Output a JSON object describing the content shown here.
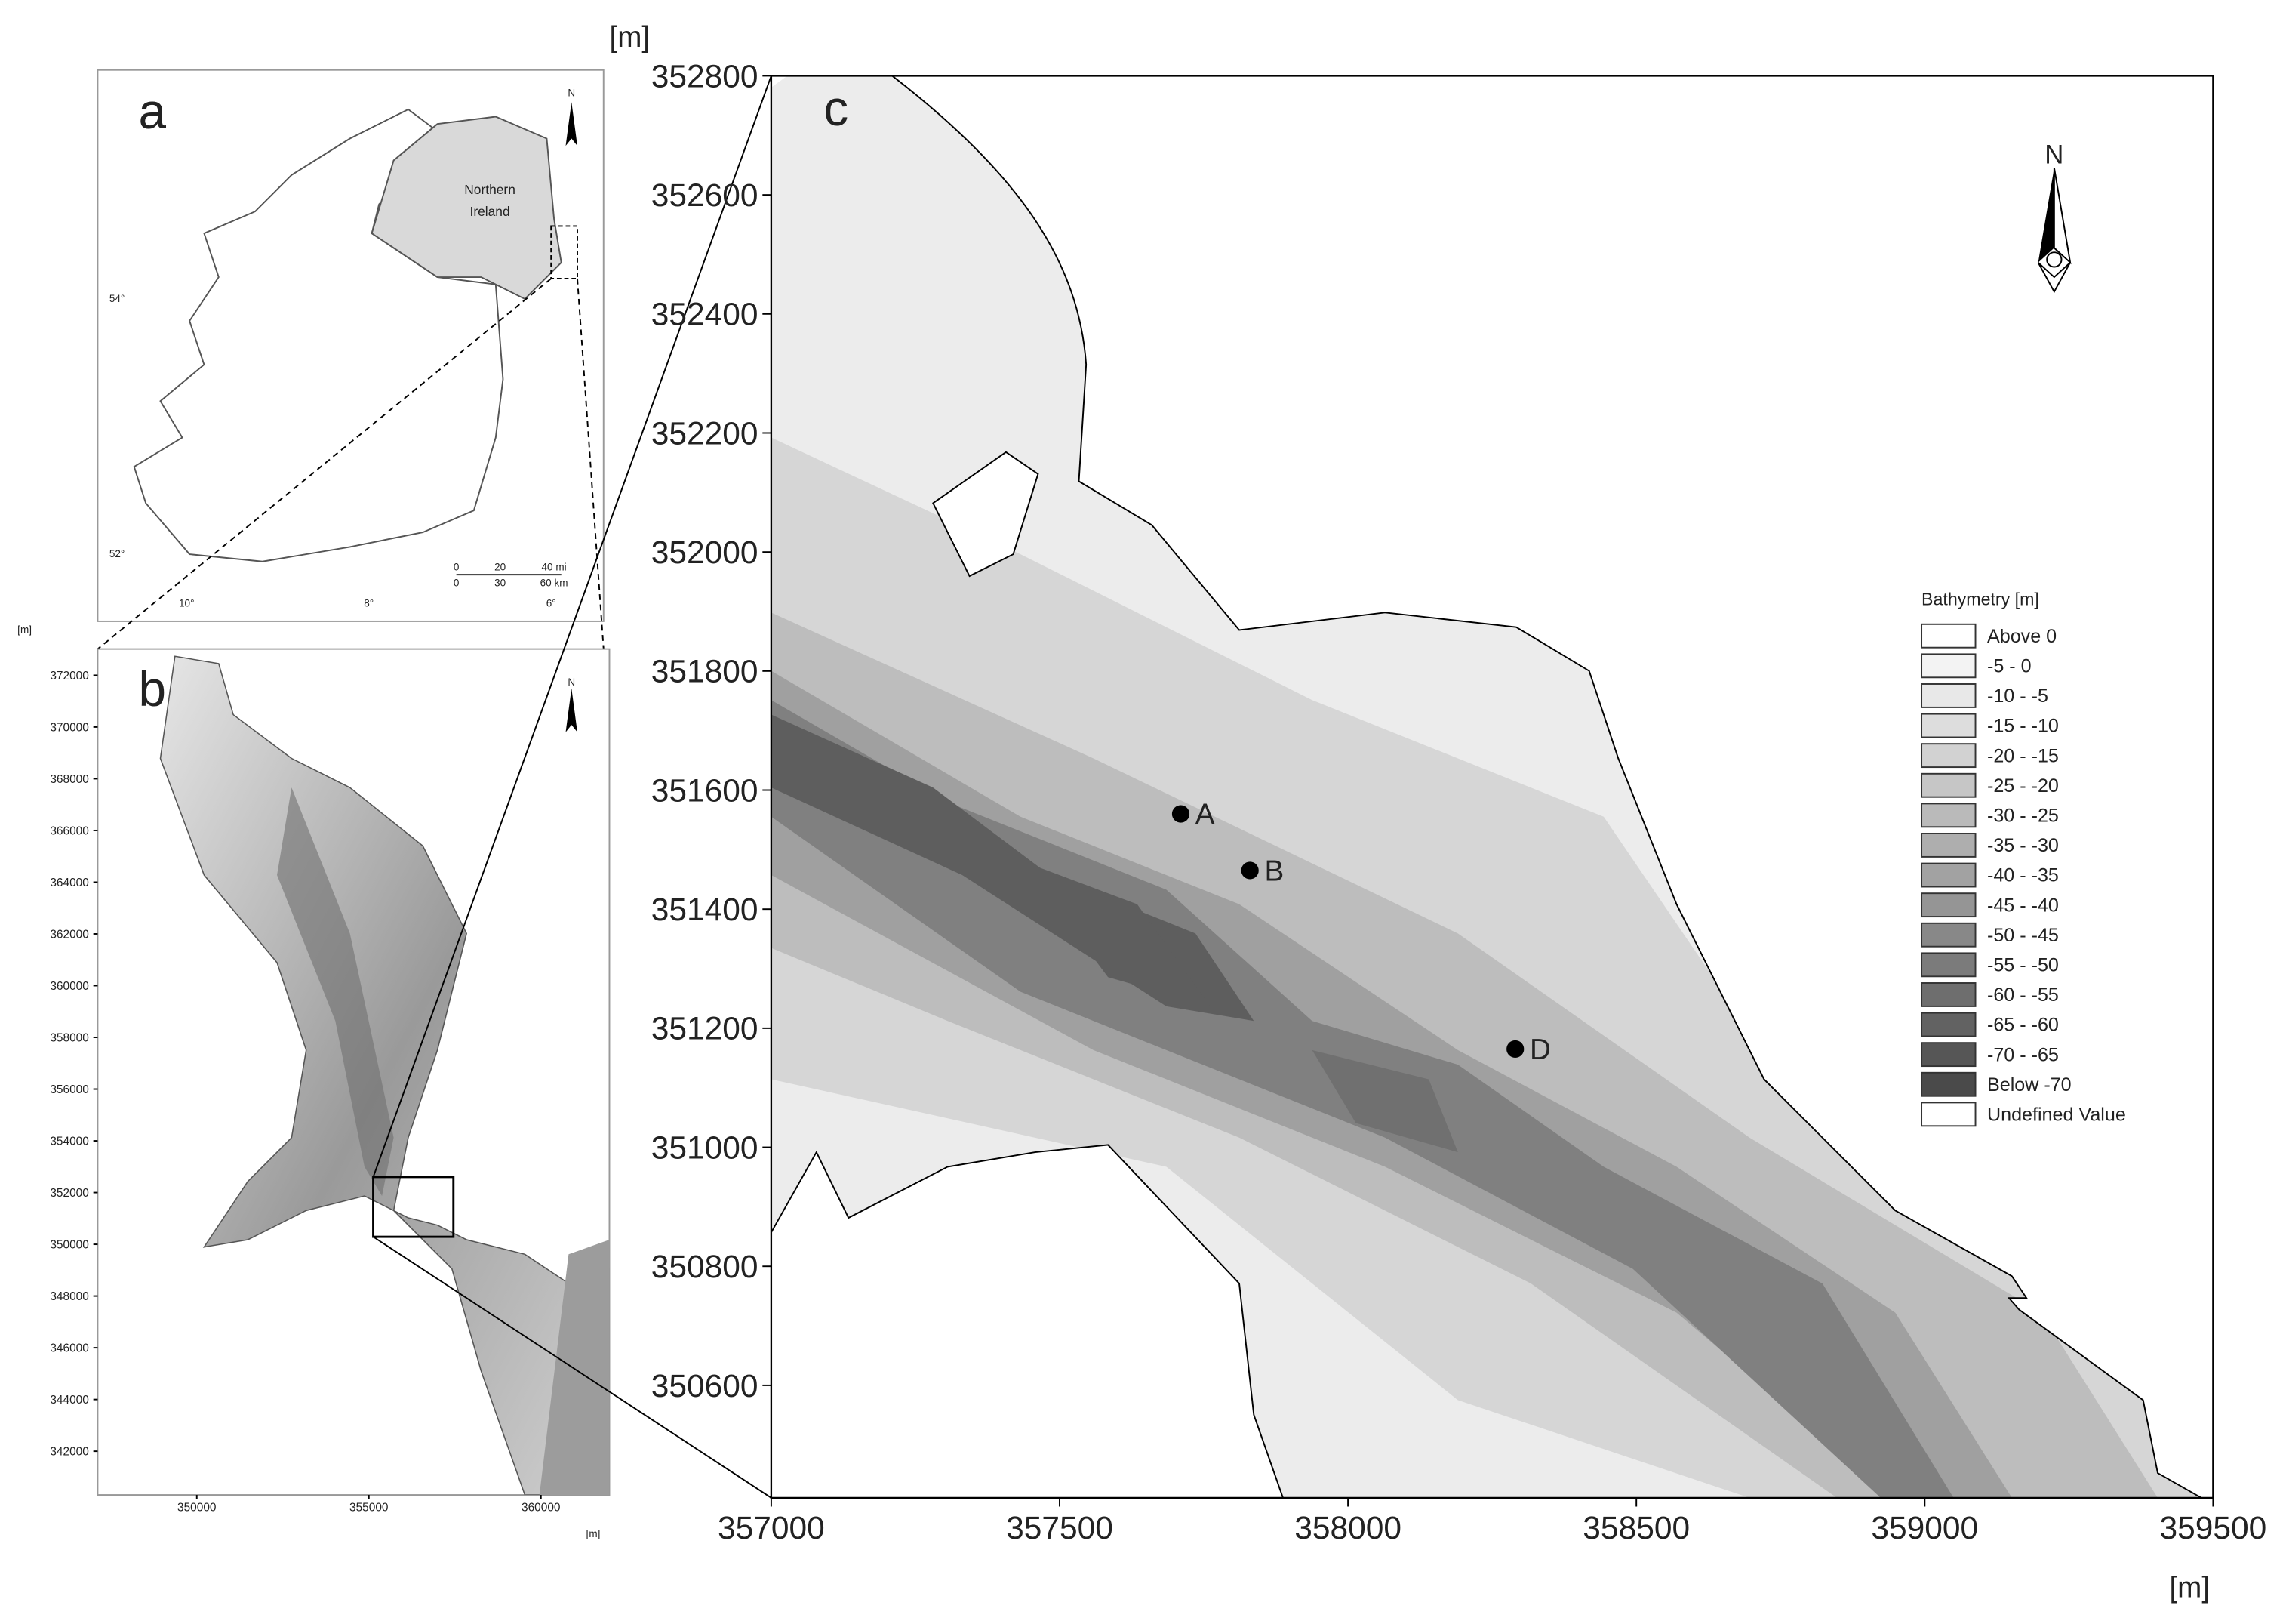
{
  "panels": {
    "a": {
      "label": "a",
      "region_label": [
        "Northern",
        "Ireland"
      ],
      "north": "N",
      "lat_labels": [
        "54°",
        "52°"
      ],
      "lon_labels": [
        "10°",
        "8°",
        "6°"
      ],
      "scale_mi": [
        "0",
        "20",
        "40 mi"
      ],
      "scale_km": [
        "0",
        "30",
        "60 km"
      ]
    },
    "b": {
      "label": "b",
      "north": "N",
      "y_unit": "[m]",
      "x_unit": "[m]",
      "xlim": [
        347120,
        361990
      ],
      "ylim": [
        340310,
        373015
      ],
      "xticks": [
        350000,
        355000,
        360000
      ],
      "yticks": [
        342000,
        344000,
        346000,
        348000,
        350000,
        352000,
        354000,
        356000,
        358000,
        360000,
        362000,
        364000,
        366000,
        368000,
        370000,
        372000
      ]
    },
    "c": {
      "label": "c",
      "north": "N",
      "y_unit": "[m]",
      "x_unit": "[m]",
      "xlim": [
        357000,
        359500
      ],
      "ylim": [
        350411,
        352800
      ],
      "xticks": [
        357000,
        357500,
        358000,
        358500,
        359000,
        359500
      ],
      "yticks": [
        350600,
        350800,
        351000,
        351200,
        351400,
        351600,
        351800,
        352000,
        352200,
        352400,
        352600,
        352800
      ],
      "points": [
        {
          "label": "A",
          "x": 357710,
          "y": 351560
        },
        {
          "label": "B",
          "x": 357830,
          "y": 351465
        },
        {
          "label": "D",
          "x": 358290,
          "y": 351165
        }
      ],
      "legend": {
        "title": "Bathymetry [m]",
        "items": [
          {
            "label": "Above 0",
            "color": "#ffffff"
          },
          {
            "label": "-5 - 0",
            "color": "#f3f3f3"
          },
          {
            "label": "-10 - -5",
            "color": "#e8e8e8"
          },
          {
            "label": "-15 - -10",
            "color": "#dddddd"
          },
          {
            "label": "-20 - -15",
            "color": "#d2d2d2"
          },
          {
            "label": "-25 - -20",
            "color": "#c6c6c6"
          },
          {
            "label": "-30 - -25",
            "color": "#bababa"
          },
          {
            "label": "-35 - -30",
            "color": "#aeaeae"
          },
          {
            "label": "-40 - -35",
            "color": "#a2a2a2"
          },
          {
            "label": "-45 - -40",
            "color": "#959595"
          },
          {
            "label": "-50 - -45",
            "color": "#888888"
          },
          {
            "label": "-55 - -50",
            "color": "#7b7b7b"
          },
          {
            "label": "-60 - -55",
            "color": "#6e6e6e"
          },
          {
            "label": "-65 - -60",
            "color": "#626262"
          },
          {
            "label": "-70 - -65",
            "color": "#565656"
          },
          {
            "label": "Below -70",
            "color": "#4a4a4a"
          },
          {
            "label": "Undefined Value",
            "color": "#ffffff"
          }
        ]
      }
    }
  }
}
